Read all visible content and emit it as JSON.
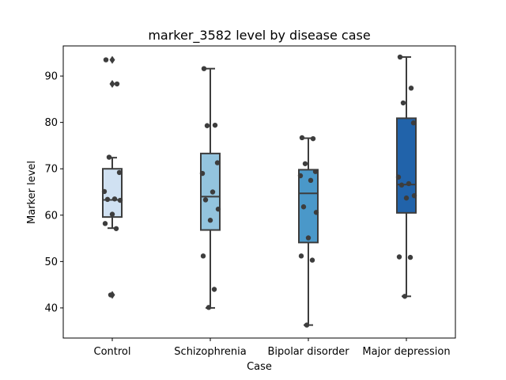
{
  "chart_data": {
    "type": "box",
    "title": "marker_3582 level by disease case",
    "xlabel": "Case",
    "ylabel": "Marker level",
    "categories": [
      "Control",
      "Schizophrenia",
      "Bipolar disorder",
      "Major depression"
    ],
    "ylim": [
      33.5,
      96.5
    ],
    "yticks": [
      40,
      50,
      60,
      70,
      80,
      90
    ],
    "grid": false,
    "legend": "none",
    "colors": [
      "#d0e1f2",
      "#93c4de",
      "#4a98c9",
      "#2163aa"
    ],
    "boxes": [
      {
        "category": "Control",
        "q1": 59.6,
        "median": 63.3,
        "q3": 70.0,
        "whisker_low": 57.2,
        "whisker_high": 72.4,
        "outliers": [
          93.5,
          88.3,
          42.8
        ]
      },
      {
        "category": "Schizophrenia",
        "q1": 56.8,
        "median": 64.0,
        "q3": 73.3,
        "whisker_low": 40.0,
        "whisker_high": 91.6,
        "outliers": []
      },
      {
        "category": "Bipolar disorder",
        "q1": 54.1,
        "median": 64.7,
        "q3": 69.8,
        "whisker_low": 36.3,
        "whisker_high": 76.6,
        "outliers": []
      },
      {
        "category": "Major depression",
        "q1": 60.5,
        "median": 66.6,
        "q3": 80.9,
        "whisker_low": 42.5,
        "whisker_high": 94.1,
        "outliers": []
      }
    ],
    "points": [
      {
        "category": "Control",
        "values": [
          93.5,
          88.3,
          72.5,
          69.2,
          65.1,
          63.5,
          63.4,
          63.2,
          60.2,
          58.2,
          57.1,
          42.8
        ]
      },
      {
        "category": "Schizophrenia",
        "values": [
          91.6,
          79.4,
          79.3,
          71.3,
          69.0,
          65.0,
          63.3,
          61.3,
          58.9,
          51.2,
          44.0,
          40.1
        ]
      },
      {
        "category": "Bipolar disorder",
        "values": [
          76.7,
          76.5,
          71.1,
          69.4,
          68.5,
          67.5,
          61.8,
          60.6,
          55.1,
          51.2,
          50.3,
          36.3
        ]
      },
      {
        "category": "Major depression",
        "values": [
          94.1,
          87.4,
          84.2,
          79.9,
          68.2,
          66.8,
          66.5,
          64.2,
          63.7,
          51.0,
          50.9,
          42.5
        ]
      }
    ]
  }
}
